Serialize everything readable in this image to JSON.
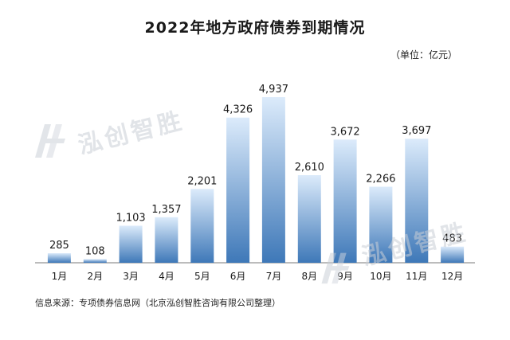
{
  "chart_data": {
    "type": "bar",
    "title": "2022年地方政府债券到期情况",
    "unit": "（单位：亿元）",
    "categories": [
      "1月",
      "2月",
      "3月",
      "4月",
      "5月",
      "6月",
      "7月",
      "8月",
      "9月",
      "10月",
      "11月",
      "12月"
    ],
    "values": [
      285,
      108,
      1103,
      1357,
      2201,
      4326,
      4937,
      2610,
      3672,
      2266,
      3697,
      483
    ],
    "value_labels": [
      "285",
      "108",
      "1,103",
      "1,357",
      "2,201",
      "4,326",
      "4,937",
      "2,610",
      "3,672",
      "2,266",
      "3,697",
      "483"
    ],
    "ylim": [
      0,
      5000
    ],
    "grid": false,
    "legend": "none",
    "bar_gradient": {
      "top": "#dcebfb",
      "bottom": "#3e78b8"
    },
    "source": "信息来源：专项债券信息网（北京泓创智胜咨询有限公司整理）"
  },
  "watermark": {
    "text": "泓创智胜"
  }
}
